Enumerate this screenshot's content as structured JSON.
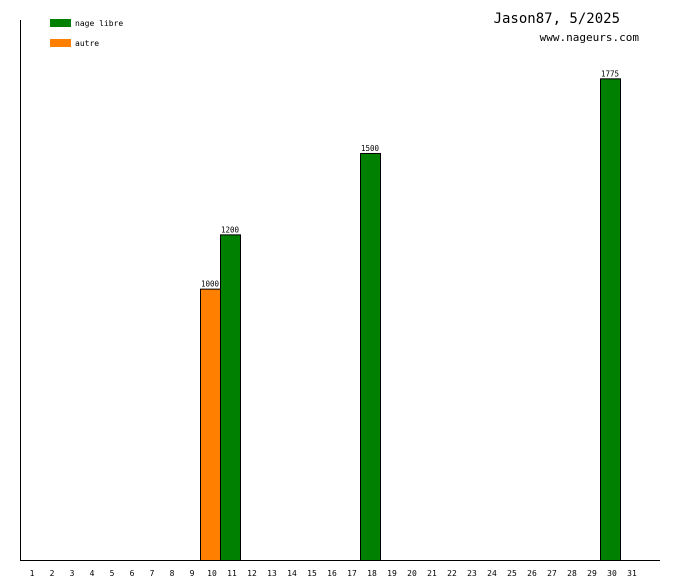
{
  "chart_data": {
    "type": "bar",
    "title": "Jason87, 5/2025",
    "subtitle": "www.nageurs.com",
    "xlabel": "",
    "ylabel": "",
    "x_categories": [
      "1",
      "2",
      "3",
      "4",
      "5",
      "6",
      "7",
      "8",
      "9",
      "10",
      "11",
      "12",
      "13",
      "14",
      "15",
      "16",
      "17",
      "18",
      "19",
      "20",
      "21",
      "22",
      "23",
      "24",
      "25",
      "26",
      "27",
      "28",
      "29",
      "30",
      "31"
    ],
    "ylim": [
      0,
      1990
    ],
    "grid": false,
    "legend_position": "top-left",
    "series": [
      {
        "name": "nage libre",
        "color": "#008000",
        "points": [
          {
            "day": 11,
            "value": 1200
          },
          {
            "day": 18,
            "value": 1500
          },
          {
            "day": 30,
            "value": 1775
          }
        ]
      },
      {
        "name": "autre",
        "color": "#ff8000",
        "points": [
          {
            "day": 10,
            "value": 1000
          }
        ]
      }
    ]
  }
}
